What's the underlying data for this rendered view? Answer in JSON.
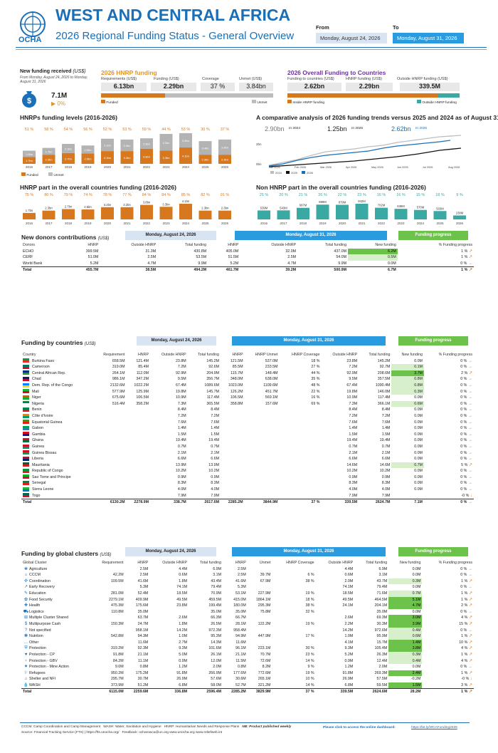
{
  "header": {
    "title": "WEST AND CENTRAL AFRICA",
    "subtitle": "2026 Regional Funding Status - General Overview",
    "org": "OCHA",
    "from_label": "From",
    "to_label": "To",
    "from_date": "Monday, August 24, 2026",
    "to_date": "Monday, August 31, 2026"
  },
  "new_funding": {
    "title": "New funding received",
    "unit": "(US$)",
    "range": "From Monday, August 24, 2026 to Monday, August 31, 2026",
    "value": "7.1M",
    "pct": "0%"
  },
  "hnrp": {
    "title": "2026 HNRP funding",
    "req_label": "Requirements (US$)",
    "req": "6.13bn",
    "fund_label": "Funding (US$)",
    "fund": "2.29bn",
    "cov_label": "Coverage",
    "cov": "37 %",
    "unmet_label": "Unmet (US$)",
    "unmet": "3.84bn",
    "funded_lbl": "Funded",
    "unmet_lbl": "Unmet",
    "funded_frac": 0.37
  },
  "overall": {
    "title": "2026 Overall Funding to Countries",
    "fc_label": "Funding to countries (US$)",
    "fc": "2.62bn",
    "hf_label": "HNRP funding (US$)",
    "hf": "2.29bn",
    "out_label": "Outside HNRP funding (US$)",
    "out": "339.5M",
    "in_lbl": "Inside HNRP funding",
    "out_lbl": "Outside HNRP funding",
    "in_frac": 0.87
  },
  "levels": {
    "title": "HNRPs funding levels (2016-2026)",
    "legend_funded": "Funded",
    "legend_unmet": "Unmet",
    "years": [
      "2016",
      "2017",
      "2018",
      "2019",
      "2020",
      "2021",
      "2022",
      "2023",
      "2024",
      "2025",
      "2026"
    ],
    "pcts": [
      "51 %",
      "58 %",
      "54 %",
      "56 %",
      "52 %",
      "53 %",
      "59 %",
      "44 %",
      "53 %",
      "30 %",
      "37 %"
    ],
    "funded": [
      "1.7bn",
      "2.3bn",
      "2.7bn",
      "2.6bn",
      "3.2bn",
      "3.2bn",
      "3.8bn",
      "3.3bn",
      "4.1bn",
      "2.3bn",
      "2.3bn"
    ],
    "unmet": [
      "1.6bn",
      "1.7bn",
      "2.3bn",
      "2.0bn",
      "3.1bn",
      "2.9bn",
      "2.6bn",
      "4.2bn",
      "3.6bn",
      "3.4bn",
      "3.8bn"
    ],
    "fv": [
      1.7,
      2.3,
      2.7,
      2.6,
      3.2,
      3.2,
      3.8,
      3.3,
      4.1,
      2.3,
      2.3
    ],
    "uv": [
      1.6,
      1.7,
      2.3,
      2.0,
      3.1,
      2.9,
      2.6,
      4.2,
      3.6,
      3.4,
      3.8
    ]
  },
  "comparative": {
    "title": "A comparative analysis of 2026 funding trends versus 2025 and 2024 as of August 31th",
    "v2024": "2.90bn",
    "l2024": "In 2024",
    "v2025": "1.25bn",
    "l2025": "In 2025",
    "v2026": "2.62bn",
    "l2026": "In 2026",
    "yticks": [
      "2bn",
      "0bn"
    ],
    "xticks": [
      "Jan 2026",
      "Feb 2026",
      "Mar 2026",
      "Apr 2026",
      "May 2026",
      "Jun 2026",
      "Jul 2026",
      "Aug 2026"
    ],
    "legend": [
      "2024",
      "2025",
      "2026"
    ],
    "colors": [
      "#bdbdbd",
      "#111111",
      "#1a6fb6"
    ]
  },
  "hnrp_part": {
    "title": "HNRP part in the overall countries funding (2016-2026)",
    "pcts": [
      "75 %",
      "80 %",
      "79 %",
      "74 %",
      "78 %",
      "77 %",
      "84 %",
      "84 %",
      "85 %",
      "82 %",
      "91 %"
    ],
    "vals": [
      "1.7bn",
      "2.3bn",
      "2.7bn",
      "2.6bn",
      "3.2bn",
      "3.2bn",
      "3.8bn",
      "3.3bn",
      "4.1bn",
      "2.3bn",
      "2.3bn"
    ],
    "v": [
      1.7,
      2.3,
      2.7,
      2.6,
      3.2,
      3.2,
      3.8,
      3.3,
      4.1,
      2.3,
      2.3
    ]
  },
  "non_hnrp": {
    "title": "Non HNRP part in the overall countries funding (2016-2026)",
    "pcts": [
      "25 %",
      "20 %",
      "21 %",
      "26 %",
      "22 %",
      "23 %",
      "16 %",
      "16 %",
      "15 %",
      "18 %",
      "9 %"
    ],
    "vals": [
      "539M",
      "543M",
      "697M",
      "889M",
      "879M",
      "942M",
      "702M",
      "636M",
      "570M",
      "503M",
      "238M"
    ],
    "v": [
      539,
      543,
      697,
      889,
      879,
      942,
      702,
      636,
      570,
      503,
      238
    ]
  },
  "donors": {
    "title": "New donors contributions",
    "unit": "(US$)",
    "d1": "Monday, August 24, 2026",
    "d2": "Monday, August 31, 2026",
    "prog": "Funding progress",
    "cols": [
      "Donors",
      "HNRP",
      "Outside HNRP",
      "Total funding",
      "HNRP",
      "Outside HNRP",
      "Total funding",
      "New funding",
      "% Funding progress"
    ],
    "rows": [
      [
        "ECHO",
        "399.5M",
        "31.3M",
        "430.8M",
        "405.0M",
        "32.0M",
        "437.0M",
        "6.2M",
        "1 %"
      ],
      [
        "CERF",
        "51.0M",
        "2.5M",
        "53.5M",
        "51.5M",
        "2.5M",
        "54.0M",
        "0.5M",
        "1 %"
      ],
      [
        "World Bank",
        "5.2M",
        "4.7M",
        "9.9M",
        "5.2M",
        "4.7M",
        "9.9M",
        "0.0M",
        "0 %"
      ]
    ],
    "total": [
      "Total",
      "455.7M",
      "38.5M",
      "494.2M",
      "461.7M",
      "39.2M",
      "500.9M",
      "6.7M",
      "1 %"
    ]
  },
  "countries": {
    "title": "Funding by countries",
    "unit": "(US$)",
    "d1": "Monday, August 24, 2026",
    "d2": "Monday, August 31, 2026",
    "prog": "Funding progress",
    "cols": [
      "Country",
      "Requirement",
      "HNRP",
      "Outside HNRP",
      "Total funding",
      "HNRP",
      "HNRP Unmet",
      "HNRP Coverage",
      "Outside HNRP",
      "Total funding",
      "New funding",
      "% Funding progress"
    ],
    "rows": [
      [
        "Burkina Faso",
        "658.5M",
        "121.4M",
        "23.8M",
        "145.2M",
        "121.5M",
        "537.0M",
        "18 %",
        "23.8M",
        "145.2M",
        "0.0M",
        "0 %"
      ],
      [
        "Cameroon",
        "319.0M",
        "85.4M",
        "7.2M",
        "92.6M",
        "85.5M",
        "233.5M",
        "27 %",
        "7.2M",
        "92.7M",
        "0.1M",
        "0 %"
      ],
      [
        "Central African Rep.",
        "264.1M",
        "112.0M",
        "92.9M",
        "204.9M",
        "115.7M",
        "148.4M",
        "44 %",
        "92.9M",
        "208.6M",
        "3.7M",
        "2 %"
      ],
      [
        "Chad",
        "986.1M",
        "347.2M",
        "9.5M",
        "356.7M",
        "348.0M",
        "638.0M",
        "35 %",
        "9.5M",
        "357.5M",
        "0.8M",
        "0 %"
      ],
      [
        "Dem. Rep. of the Congo",
        "2132.6M",
        "1022.2M",
        "67.4M",
        "1089.6M",
        "1023.0M",
        "1109.6M",
        "48 %",
        "67.4M",
        "1090.4M",
        "0.8M",
        "0 %"
      ],
      [
        "Mali",
        "577.9M",
        "125.9M",
        "19.8M",
        "145.7M",
        "126.2M",
        "451.7M",
        "22 %",
        "19.8M",
        "146.0M",
        "0.3M",
        "0 %"
      ],
      [
        "Niger",
        "675.6M",
        "106.5M",
        "10.9M",
        "117.4M",
        "106.5M",
        "569.1M",
        "16 %",
        "10.9M",
        "117.4M",
        "0.0M",
        "0 %"
      ],
      [
        "Nigeria",
        "516.4M",
        "358.2M",
        "7.3M",
        "365.5M",
        "358.8M",
        "157.6M",
        "69 %",
        "7.3M",
        "366.1M",
        "0.6M",
        "0 %"
      ],
      [
        "Benin",
        "",
        "",
        "8.4M",
        "8.4M",
        "",
        "",
        "",
        "8.4M",
        "8.4M",
        "0.0M",
        "0 %"
      ],
      [
        "Côte d'Ivoire",
        "",
        "",
        "7.2M",
        "7.2M",
        "",
        "",
        "",
        "7.2M",
        "7.2M",
        "0.0M",
        "0 %"
      ],
      [
        "Equatorial Guinea",
        "",
        "",
        "7.6M",
        "7.6M",
        "",
        "",
        "",
        "7.6M",
        "7.6M",
        "0.0M",
        "0 %"
      ],
      [
        "Gabon",
        "",
        "",
        "1.4M",
        "1.4M",
        "",
        "",
        "",
        "1.4M",
        "1.4M",
        "0.0M",
        "0 %"
      ],
      [
        "Gambia",
        "",
        "",
        "1.5M",
        "1.5M",
        "",
        "",
        "",
        "1.5M",
        "1.5M",
        "0.0M",
        "0 %"
      ],
      [
        "Ghana",
        "",
        "",
        "19.4M",
        "19.4M",
        "",
        "",
        "",
        "19.4M",
        "19.4M",
        "0.0M",
        "0 %"
      ],
      [
        "Guinea",
        "",
        "",
        "0.7M",
        "0.7M",
        "",
        "",
        "",
        "0.7M",
        "0.7M",
        "0.0M",
        "0 %"
      ],
      [
        "Guinea Bissau",
        "",
        "",
        "2.1M",
        "2.1M",
        "",
        "",
        "",
        "2.1M",
        "2.1M",
        "0.0M",
        "0 %"
      ],
      [
        "Liberia",
        "",
        "",
        "6.6M",
        "6.6M",
        "",
        "",
        "",
        "6.6M",
        "6.6M",
        "0.0M",
        "0 %"
      ],
      [
        "Mauritania",
        "",
        "",
        "13.9M",
        "13.9M",
        "",
        "",
        "",
        "14.6M",
        "14.6M",
        "0.7M",
        "5 %"
      ],
      [
        "Republic of Congo",
        "",
        "",
        "10.2M",
        "10.2M",
        "",
        "",
        "",
        "10.2M",
        "10.2M",
        "0.0M",
        "0 %"
      ],
      [
        "Sao Tome and Principe",
        "",
        "",
        "0.9M",
        "0.9M",
        "",
        "",
        "",
        "0.9M",
        "0.9M",
        "0.0M",
        "0 %"
      ],
      [
        "Senegal",
        "",
        "",
        "8.3M",
        "8.3M",
        "",
        "",
        "",
        "8.3M",
        "8.3M",
        "0.0M",
        "0 %"
      ],
      [
        "Sierra Leone",
        "",
        "",
        "4.0M",
        "4.0M",
        "",
        "",
        "",
        "4.0M",
        "4.0M",
        "0.0M",
        "0 %"
      ],
      [
        "Togo",
        "",
        "",
        "7.9M",
        "7.9M",
        "",
        "",
        "",
        "7.9M",
        "7.9M",
        "",
        "-0 %"
      ]
    ],
    "total": [
      "Total",
      "6130.2M",
      "2278.9M",
      "338.7M",
      "2617.6M",
      "2285.2M",
      "3844.9M",
      "37 %",
      "339.5M",
      "2624.7M",
      "7.1M",
      "0 %"
    ]
  },
  "clusters": {
    "title": "Funding by global clusters",
    "unit": "(US$)",
    "d1": "Monday, August 24, 2026",
    "d2": "Monday, August 31, 2026",
    "prog": "Funding progress",
    "cols": [
      "Global Cluster",
      "Requirement",
      "HNRP",
      "Outside HNRP",
      "Total funding",
      "HNRP",
      "Unmet",
      "HNRP Coverage",
      "Outside HNRP",
      "Total funding",
      "New funding",
      "% Funding progress"
    ],
    "rows": [
      [
        "Agriculture",
        "",
        "2.5M",
        "4.4M",
        "6.9M",
        "2.5M",
        "",
        "",
        "4.4M",
        "6.9M",
        "0.0M",
        "0 %"
      ],
      [
        "CCCM",
        "42.2M",
        "2.5M",
        "0.6M",
        "3.1M",
        "2.5M",
        "39.7M",
        "6 %",
        "0.6M",
        "3.1M",
        "0.0M",
        "0 %"
      ],
      [
        "Coordination",
        "109.5M",
        "41.6M",
        "1.8M",
        "43.4M",
        "41.6M",
        "67.9M",
        "38 %",
        "2.0M",
        "43.7M",
        "0.3M",
        "1 %"
      ],
      [
        "Early Recovery",
        "",
        "5.3M",
        "74.1M",
        "79.4M",
        "5.3M",
        "",
        "",
        "74.1M",
        "79.4M",
        "0.0M",
        "0 %"
      ],
      [
        "Education",
        "281.0M",
        "52.4M",
        "18.5M",
        "70.9M",
        "53.1M",
        "227.9M",
        "19 %",
        "18.5M",
        "71.6M",
        "0.7M",
        "1 %"
      ],
      [
        "Food Security",
        "2279.1M",
        "409.9M",
        "49.5M",
        "459.5M",
        "415.0M",
        "1864.1M",
        "18 %",
        "49.5M",
        "464.5M",
        "5.1M",
        "1 %"
      ],
      [
        "Health",
        "475.3M",
        "175.6M",
        "23.8M",
        "199.4M",
        "180.0M",
        "295.3M",
        "38 %",
        "24.1M",
        "204.1M",
        "4.7M",
        "2 %"
      ],
      [
        "Logistics",
        "110.8M",
        "35.0M",
        "",
        "35.0M",
        "35.0M",
        "75.8M",
        "32 %",
        "",
        "35.0M",
        "0.0M",
        "0 %"
      ],
      [
        "Multiple Cluster Shared",
        "",
        "63.7M",
        "2.6M",
        "66.3M",
        "66.7M",
        "",
        "",
        "2.6M",
        "69.3M",
        "3.0M",
        "4 %"
      ],
      [
        "Multipurpose Cash",
        "150.3M",
        "24.7M",
        "1.8M",
        "26.5M",
        "28.1M",
        "122.2M",
        "19 %",
        "2.2M",
        "30.3M",
        "3.9M",
        "15 %"
      ],
      [
        "Not specified",
        "",
        "958.1M",
        "14.2M",
        "972.3M",
        "958.4M",
        "",
        "",
        "14.2M",
        "972.6M",
        "0.4M",
        "0 %"
      ],
      [
        "Nutrition",
        "542.8M",
        "94.3M",
        "1.0M",
        "95.3M",
        "94.9M",
        "447.9M",
        "17 %",
        "1.0M",
        "95.9M",
        "0.6M",
        "1 %"
      ],
      [
        "Other",
        "",
        "11.6M",
        "2.7M",
        "14.3M",
        "11.6M",
        "",
        "",
        "4.1M",
        "15.7M",
        "1.4M",
        "10 %"
      ],
      [
        "Protection",
        "319.2M",
        "92.3M",
        "9.3M",
        "101.6M",
        "96.1M",
        "223.1M",
        "30 %",
        "9.3M",
        "105.4M",
        "3.8M",
        "4 %"
      ],
      [
        "Protection - CP",
        "91.8M",
        "21.1M",
        "5.0M",
        "26.1M",
        "21.1M",
        "70.7M",
        "23 %",
        "5.2M",
        "26.3M",
        "0.3M",
        "1 %"
      ],
      [
        "Protection - GBV",
        "84.2M",
        "11.1M",
        "0.9M",
        "12.0M",
        "11.5M",
        "72.6M",
        "14 %",
        "0.9M",
        "12.4M",
        "0.4M",
        "4 %"
      ],
      [
        "Protection - Mine Action",
        "9.0M",
        "0.8M",
        "1.2M",
        "2.0M",
        "0.8M",
        "8.2M",
        "9 %",
        "1.2M",
        "2.0M",
        "0.0M",
        "0 %"
      ],
      [
        "Refugees",
        "950.2M",
        "175.2M",
        "91.8M",
        "266.9M",
        "177.6M",
        "772.6M",
        "19 %",
        "91.8M",
        "269.3M",
        "2.4M",
        "1 %"
      ],
      [
        "Shelter and NFI",
        "295.7M",
        "30.7M",
        "26.9M",
        "57.6M",
        "30.6M",
        "265.1M",
        "10 %",
        "26.9M",
        "57.5M",
        "-0.2M",
        "-0 %"
      ],
      [
        "WASH",
        "373.9M",
        "51.2M",
        "6.8M",
        "58.0M",
        "52.7M",
        "321.2M",
        "14 %",
        "6.8M",
        "59.5M",
        "1.5M",
        "3 %"
      ]
    ],
    "total": [
      "Total",
      "6115.0M",
      "2259.6M",
      "336.8M",
      "2596.4M",
      "2285.2M",
      "3829.9M",
      "37 %",
      "339.5M",
      "2624.6M",
      "28.2M",
      "1 %"
    ]
  },
  "footer": {
    "abbr1": "CCCM: Camp Coordination and Camp Management",
    "abbr2": "WASH: Water, Sanitation and Hygiene",
    "abbr3": "HNRP: Humanitarian Needs and Response Plans",
    "note": "NB: Product published weekly",
    "source": "Source: Financial Tracking Service (FTS) | https://fts.unocha.org/",
    "feedback": "Feedback: ocharowca@un.org   www.unocha.org   www.reliefweb.int",
    "dash_label": "Please click to access the online dashboard:",
    "dash_link": "https://bit.ly/WCAFunding2026"
  }
}
